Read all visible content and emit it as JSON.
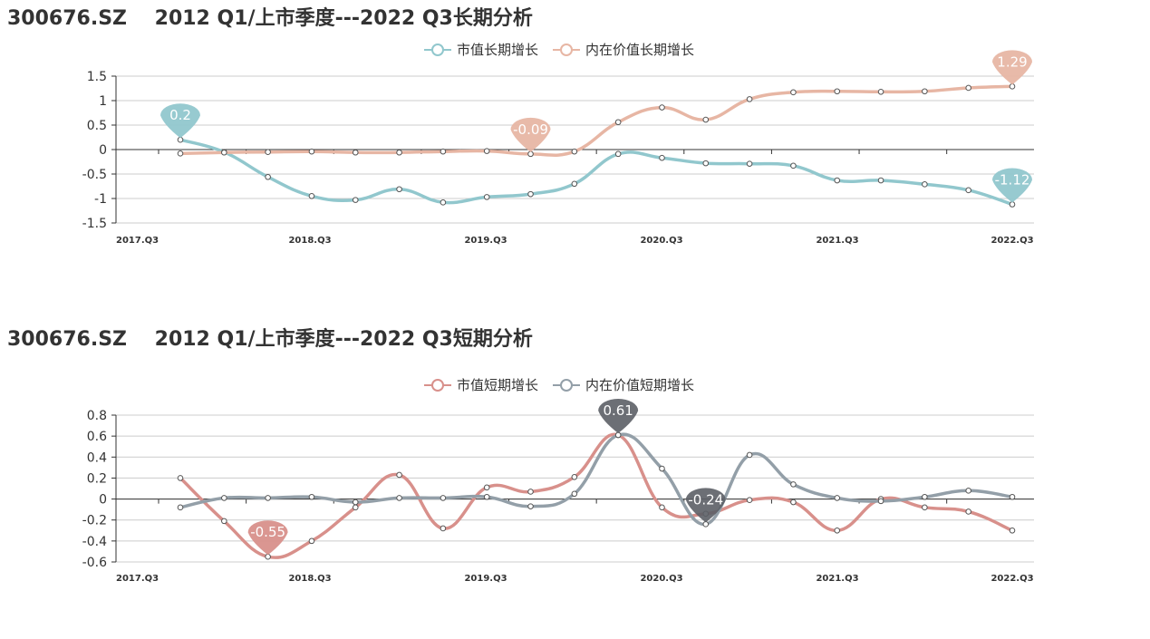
{
  "chart_data": [
    {
      "type": "line",
      "title": "300676.SZ    2012 Q1/上市季度---2022 Q3长期分析",
      "x_ticks": [
        "2017.Q3",
        "2018.Q3",
        "2019.Q3",
        "2020.Q3",
        "2021.Q3",
        "2022.Q3"
      ],
      "ylim": [
        -1.5,
        1.5
      ],
      "y_ticks": [
        "1.5",
        "1",
        "0.5",
        "0",
        "-0.5",
        "-1",
        "-1.5"
      ],
      "grid": true,
      "legend_position": "top-center",
      "series": [
        {
          "name": "市值长期增长",
          "color": "#91c7cd",
          "values": [
            0.2,
            -0.05,
            -0.56,
            -0.95,
            -1.03,
            -0.81,
            -1.08,
            -0.97,
            -0.91,
            -0.7,
            -0.09,
            -0.17,
            -0.28,
            -0.29,
            -0.33,
            -0.63,
            -0.63,
            -0.71,
            -0.83,
            -1.12
          ],
          "callouts": [
            {
              "index": 0,
              "label": "0.2"
            },
            {
              "index": 19,
              "label": "-1.12"
            }
          ]
        },
        {
          "name": "内在价值长期增长",
          "color": "#e7b6a4",
          "values": [
            -0.08,
            -0.06,
            -0.05,
            -0.04,
            -0.06,
            -0.06,
            -0.04,
            -0.03,
            -0.09,
            -0.04,
            0.56,
            0.86,
            0.61,
            1.03,
            1.17,
            1.19,
            1.18,
            1.19,
            1.26,
            1.29
          ],
          "callouts": [
            {
              "index": 8,
              "label": "-0.09"
            },
            {
              "index": 19,
              "label": "1.29"
            }
          ]
        }
      ]
    },
    {
      "type": "line",
      "title": "300676.SZ    2012 Q1/上市季度---2022 Q3短期分析",
      "x_ticks": [
        "2017.Q3",
        "2018.Q3",
        "2019.Q3",
        "2020.Q3",
        "2021.Q3",
        "2022.Q3"
      ],
      "ylim": [
        -0.6,
        0.8
      ],
      "y_ticks": [
        "0.8",
        "0.6",
        "0.4",
        "0.2",
        "0",
        "-0.2",
        "-0.4",
        "-0.6"
      ],
      "grid": true,
      "legend_position": "top-center",
      "series": [
        {
          "name": "市值短期增长",
          "color": "#d8908b",
          "values": [
            0.2,
            -0.21,
            -0.55,
            -0.4,
            -0.08,
            0.23,
            -0.28,
            0.11,
            0.07,
            0.21,
            0.61,
            -0.08,
            -0.14,
            -0.01,
            -0.03,
            -0.3,
            0.0,
            -0.08,
            -0.12,
            -0.3
          ],
          "callouts": [
            {
              "index": 2,
              "label": "-0.55"
            }
          ]
        },
        {
          "name": "内在价值短期增长",
          "color": "#939fa8",
          "values": [
            -0.08,
            0.01,
            0.01,
            0.02,
            -0.03,
            0.01,
            0.01,
            0.02,
            -0.07,
            0.05,
            0.61,
            0.29,
            -0.24,
            0.42,
            0.14,
            0.01,
            -0.02,
            0.02,
            0.08,
            0.02
          ],
          "callouts": [
            {
              "index": 10,
              "label": "0.61"
            },
            {
              "index": 12,
              "label": "-0.24"
            }
          ]
        }
      ]
    }
  ]
}
